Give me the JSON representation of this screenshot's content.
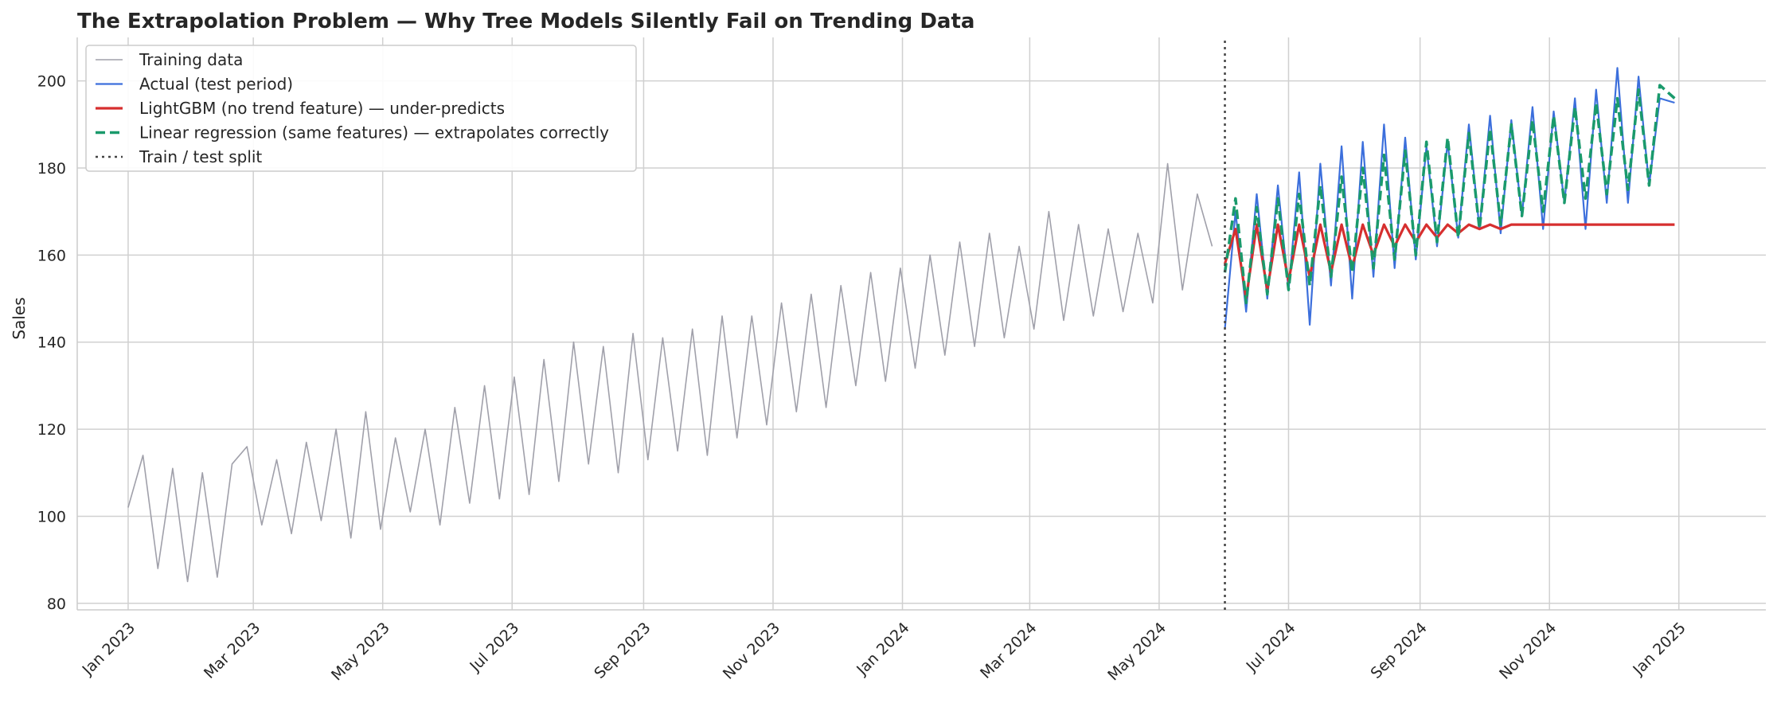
{
  "chart_data": {
    "type": "line",
    "title": "The Extrapolation Problem — Why Tree Models Silently Fail on Trending Data",
    "xlabel": "",
    "ylabel": "Sales",
    "xlim": [
      "2022-12-08",
      "2025-02-11"
    ],
    "ylim": [
      78.5,
      210
    ],
    "x_ticks": [
      "2023-01-01",
      "2023-03-01",
      "2023-05-01",
      "2023-07-01",
      "2023-09-01",
      "2023-11-01",
      "2024-01-01",
      "2024-03-01",
      "2024-05-01",
      "2024-07-01",
      "2024-09-01",
      "2024-11-01",
      "2025-01-01"
    ],
    "x_tick_labels": [
      "Jan 2023",
      "Mar 2023",
      "May 2023",
      "Jul 2023",
      "Sep 2023",
      "Nov 2023",
      "Jan 2024",
      "Mar 2024",
      "May 2024",
      "Jul 2024",
      "Sep 2024",
      "Nov 2024",
      "Jan 2025"
    ],
    "y_ticks": [
      80,
      100,
      120,
      140,
      160,
      180,
      200
    ],
    "y_tick_labels": [
      "80",
      "100",
      "120",
      "140",
      "160",
      "180",
      "200"
    ],
    "grid": true,
    "legend_position": "top-left",
    "split_date": "2024-06-01",
    "series": [
      {
        "name": "Training data",
        "color": "#a0a0aa",
        "style": "solid",
        "x": [
          "2023-01-01",
          "2023-01-08",
          "2023-01-15",
          "2023-01-22",
          "2023-01-29",
          "2023-02-05",
          "2023-02-12",
          "2023-02-19",
          "2023-02-26",
          "2023-03-05",
          "2023-03-12",
          "2023-03-19",
          "2023-03-26",
          "2023-04-02",
          "2023-04-09",
          "2023-04-16",
          "2023-04-23",
          "2023-04-30",
          "2023-05-07",
          "2023-05-14",
          "2023-05-21",
          "2023-05-28",
          "2023-06-04",
          "2023-06-11",
          "2023-06-18",
          "2023-06-25",
          "2023-07-02",
          "2023-07-09",
          "2023-07-16",
          "2023-07-23",
          "2023-07-30",
          "2023-08-06",
          "2023-08-13",
          "2023-08-20",
          "2023-08-27",
          "2023-09-03",
          "2023-09-10",
          "2023-09-17",
          "2023-09-24",
          "2023-10-01",
          "2023-10-08",
          "2023-10-15",
          "2023-10-22",
          "2023-10-29",
          "2023-11-05",
          "2023-11-12",
          "2023-11-19",
          "2023-11-26",
          "2023-12-03",
          "2023-12-10",
          "2023-12-17",
          "2023-12-24",
          "2023-12-31",
          "2024-01-07",
          "2024-01-14",
          "2024-01-21",
          "2024-01-28",
          "2024-02-04",
          "2024-02-11",
          "2024-02-18",
          "2024-02-25",
          "2024-03-03",
          "2024-03-10",
          "2024-03-17",
          "2024-03-24",
          "2024-03-31",
          "2024-04-07",
          "2024-04-14",
          "2024-04-21",
          "2024-04-28",
          "2024-05-05",
          "2024-05-12",
          "2024-05-19",
          "2024-05-26"
        ],
        "y": [
          102,
          114,
          88,
          111,
          85,
          110,
          86,
          112,
          116,
          98,
          113,
          96,
          117,
          99,
          120,
          95,
          124,
          97,
          118,
          101,
          120,
          98,
          125,
          103,
          130,
          104,
          132,
          105,
          136,
          108,
          140,
          112,
          139,
          110,
          142,
          113,
          141,
          115,
          143,
          114,
          146,
          118,
          146,
          121,
          149,
          124,
          151,
          125,
          153,
          130,
          156,
          131,
          157,
          134,
          160,
          137,
          163,
          139,
          165,
          141,
          162,
          143,
          170,
          145,
          167,
          146,
          166,
          147,
          165,
          149,
          181,
          152,
          174,
          162
        ]
      },
      {
        "name": "Actual (test period)",
        "color": "#3c6fdc",
        "style": "solid",
        "x": [
          "2024-06-01",
          "2024-06-06",
          "2024-06-11",
          "2024-06-16",
          "2024-06-21",
          "2024-06-26",
          "2024-07-01",
          "2024-07-06",
          "2024-07-11",
          "2024-07-16",
          "2024-07-21",
          "2024-07-26",
          "2024-07-31",
          "2024-08-05",
          "2024-08-10",
          "2024-08-15",
          "2024-08-20",
          "2024-08-25",
          "2024-08-30",
          "2024-09-04",
          "2024-09-09",
          "2024-09-14",
          "2024-09-19",
          "2024-09-24",
          "2024-09-29",
          "2024-10-04",
          "2024-10-09",
          "2024-10-14",
          "2024-10-19",
          "2024-10-24",
          "2024-10-29",
          "2024-11-03",
          "2024-11-08",
          "2024-11-13",
          "2024-11-18",
          "2024-11-23",
          "2024-11-28",
          "2024-12-03",
          "2024-12-08",
          "2024-12-13",
          "2024-12-18",
          "2024-12-23",
          "2024-12-30"
        ],
        "y": [
          143,
          170,
          147,
          174,
          150,
          176,
          152,
          179,
          144,
          181,
          153,
          185,
          150,
          186,
          155,
          190,
          157,
          187,
          159,
          185,
          162,
          186,
          164,
          190,
          166,
          192,
          165,
          191,
          169,
          194,
          166,
          193,
          172,
          196,
          166,
          198,
          172,
          203,
          172,
          201,
          176,
          196,
          195
        ]
      },
      {
        "name": "LightGBM (no trend feature) — under-predicts",
        "color": "#d62f2f",
        "style": "solid",
        "x": [
          "2024-06-01",
          "2024-06-06",
          "2024-06-11",
          "2024-06-16",
          "2024-06-21",
          "2024-06-26",
          "2024-07-01",
          "2024-07-06",
          "2024-07-11",
          "2024-07-16",
          "2024-07-21",
          "2024-07-26",
          "2024-07-31",
          "2024-08-05",
          "2024-08-10",
          "2024-08-15",
          "2024-08-20",
          "2024-08-25",
          "2024-08-30",
          "2024-09-04",
          "2024-09-09",
          "2024-09-14",
          "2024-09-19",
          "2024-09-24",
          "2024-09-29",
          "2024-10-04",
          "2024-10-09",
          "2024-10-14",
          "2024-10-19",
          "2024-10-24",
          "2024-10-29",
          "2024-11-08",
          "2024-11-28",
          "2024-12-18",
          "2024-12-30"
        ],
        "y": [
          158,
          166,
          150,
          167,
          152,
          167,
          154,
          167,
          155,
          167,
          156,
          167,
          157,
          167,
          160,
          167,
          162,
          167,
          163,
          167,
          164,
          167,
          165,
          167,
          166,
          167,
          166,
          167,
          167,
          167,
          167,
          167,
          167,
          167,
          167
        ]
      },
      {
        "name": "Linear regression (same features) — extrapolates correctly",
        "color": "#1a9a6c",
        "style": "dashed",
        "x": [
          "2024-06-01",
          "2024-06-06",
          "2024-06-11",
          "2024-06-16",
          "2024-06-21",
          "2024-06-26",
          "2024-07-01",
          "2024-07-06",
          "2024-07-11",
          "2024-07-16",
          "2024-07-21",
          "2024-07-26",
          "2024-07-31",
          "2024-08-05",
          "2024-08-10",
          "2024-08-15",
          "2024-08-20",
          "2024-08-25",
          "2024-08-30",
          "2024-09-04",
          "2024-09-09",
          "2024-09-14",
          "2024-09-19",
          "2024-09-24",
          "2024-09-29",
          "2024-10-04",
          "2024-10-09",
          "2024-10-14",
          "2024-10-19",
          "2024-10-24",
          "2024-10-29",
          "2024-11-03",
          "2024-11-08",
          "2024-11-13",
          "2024-11-18",
          "2024-11-23",
          "2024-11-28",
          "2024-12-03",
          "2024-12-08",
          "2024-12-13",
          "2024-12-18",
          "2024-12-23",
          "2024-12-30"
        ],
        "y": [
          156,
          173,
          149,
          171,
          151,
          173,
          152,
          174,
          153,
          176,
          155,
          178,
          156,
          180,
          157,
          183,
          159,
          184,
          160,
          186,
          163,
          187,
          164,
          188,
          166,
          189,
          167,
          190,
          169,
          191,
          170,
          192,
          172,
          194,
          173,
          195,
          174,
          196,
          175,
          198,
          176,
          199,
          196
        ]
      }
    ]
  },
  "legend": {
    "items": [
      {
        "label": "Training data",
        "color": "#a0a0aa",
        "style": "solid"
      },
      {
        "label": "Actual (test period)",
        "color": "#3c6fdc",
        "style": "solid"
      },
      {
        "label": "LightGBM (no trend feature) — under-predicts",
        "color": "#d62f2f",
        "style": "solid"
      },
      {
        "label": "Linear regression (same features) — extrapolates correctly",
        "color": "#1a9a6c",
        "style": "dashed"
      },
      {
        "label": "Train / test split",
        "color": "#444444",
        "style": "dotted"
      }
    ]
  },
  "colors": {
    "grid": "#d0d0d0",
    "text": "#262626",
    "split_line": "#444444"
  }
}
